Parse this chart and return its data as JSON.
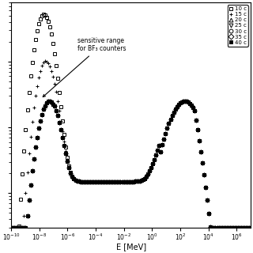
{
  "xlabel": "E [MeV]",
  "xlim": [
    -10,
    7
  ],
  "ylim_min": 0.3,
  "ylim_max": 800,
  "legend_labels": [
    "10 c",
    "15 c",
    "20 c",
    "25 c",
    "30 c",
    "35 c",
    "40 c"
  ],
  "legend_markers": [
    "s",
    "+",
    "^",
    "v",
    "o",
    "D",
    "s"
  ],
  "legend_fillstyles": [
    "none",
    "full",
    "none",
    "none",
    "none",
    "none",
    "full"
  ],
  "annotation_text": "sensitive range\nfor BF₃ counters",
  "background_color": "#ffffff",
  "thicknesses": [
    10,
    15,
    20,
    25,
    30,
    35,
    40
  ]
}
